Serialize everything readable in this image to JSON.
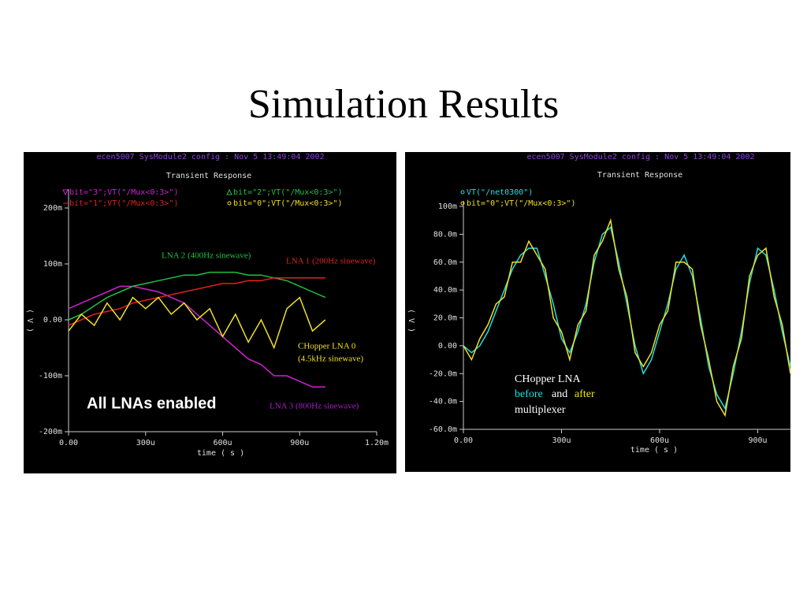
{
  "title": "Simulation Results",
  "chart_data": [
    {
      "type": "line",
      "header": "ecen5007 SysModule2 config : Nov  5 13:49:04 2002",
      "title": "Transient Response",
      "xlabel": "time ( s )",
      "ylabel": "( V )",
      "xlim": [
        0,
        0.0012
      ],
      "ylim": [
        -0.2,
        0.2
      ],
      "xticks": [
        {
          "value": 0,
          "label": "0.00"
        },
        {
          "value": 0.0003,
          "label": "300u"
        },
        {
          "value": 0.0006,
          "label": "600u"
        },
        {
          "value": 0.0009,
          "label": "900u"
        },
        {
          "value": 0.0012,
          "label": "1.20m"
        }
      ],
      "yticks": [
        {
          "value": 0.2,
          "label": "200m"
        },
        {
          "value": 0.1,
          "label": "100m"
        },
        {
          "value": 0,
          "label": "0.00"
        },
        {
          "value": -0.1,
          "label": "-100m"
        },
        {
          "value": -0.2,
          "label": "-200m"
        }
      ],
      "x": [
        0,
        5e-05,
        0.0001,
        0.00015,
        0.0002,
        0.00025,
        0.0003,
        0.00035,
        0.0004,
        0.00045,
        0.0005,
        0.00055,
        0.0006,
        0.00065,
        0.0007,
        0.00075,
        0.0008,
        0.00085,
        0.0009,
        0.00095,
        0.001
      ],
      "series": [
        {
          "name": "bit=\"3\";VT(\"/Mux<0:3>\")",
          "color": "#d020d0",
          "values": [
            0.02,
            0.03,
            0.04,
            0.05,
            0.06,
            0.06,
            0.055,
            0.05,
            0.04,
            0.03,
            0.01,
            -0.01,
            -0.03,
            -0.05,
            -0.07,
            -0.08,
            -0.1,
            -0.1,
            -0.11,
            -0.12,
            -0.12
          ]
        },
        {
          "name": "bit=\"2\";VT(\"/Mux<0:3>\")",
          "color": "#20c040",
          "values": [
            0.0,
            0.01,
            0.025,
            0.04,
            0.05,
            0.06,
            0.065,
            0.07,
            0.075,
            0.08,
            0.08,
            0.085,
            0.085,
            0.085,
            0.08,
            0.08,
            0.075,
            0.07,
            0.06,
            0.05,
            0.04
          ]
        },
        {
          "name": "bit=\"1\";VT(\"/Mux<0:3>\")",
          "color": "#e02020",
          "values": [
            -0.01,
            0.0,
            0.01,
            0.015,
            0.02,
            0.03,
            0.035,
            0.04,
            0.045,
            0.05,
            0.055,
            0.06,
            0.065,
            0.065,
            0.07,
            0.07,
            0.075,
            0.075,
            0.075,
            0.075,
            0.075
          ]
        },
        {
          "name": "bit=\"0\";VT(\"/Mux<0:3>\")",
          "color": "#f0e020",
          "values": [
            -0.02,
            0.01,
            -0.01,
            0.03,
            0.0,
            0.04,
            0.02,
            0.04,
            0.01,
            0.03,
            0.0,
            0.02,
            -0.03,
            0.01,
            -0.04,
            0.0,
            -0.05,
            0.02,
            0.04,
            -0.02,
            0.0
          ]
        }
      ],
      "annotations": [
        {
          "text": "LNA 2  (400Hz sinewave)",
          "color": "#20c040"
        },
        {
          "text": "LNA 1  (200Hz sinewave)",
          "color": "#e02020"
        },
        {
          "text": "CHopper LNA 0",
          "color": "#f0e020"
        },
        {
          "text": "(4.5kHz sinewave)",
          "color": "#f0e020"
        },
        {
          "text": "LNA 3 (800Hz sinewave)",
          "color": "#a020c0"
        },
        {
          "text": "All LNAs enabled",
          "color": "#ffffff"
        }
      ]
    },
    {
      "type": "line",
      "header": "ecen5007 SysModule2 config : Nov  5 13:49:04 2002",
      "title": "Transient Response",
      "xlabel": "time ( s )",
      "ylabel": "( V )",
      "xlim": [
        0,
        0.001
      ],
      "ylim": [
        -0.06,
        0.1
      ],
      "xticks": [
        {
          "value": 0,
          "label": "0.00"
        },
        {
          "value": 0.0003,
          "label": "300u"
        },
        {
          "value": 0.0006,
          "label": "600u"
        },
        {
          "value": 0.0009,
          "label": "900u"
        }
      ],
      "yticks": [
        {
          "value": 0.1,
          "label": "100m"
        },
        {
          "value": 0.08,
          "label": "80.0m"
        },
        {
          "value": 0.06,
          "label": "60.0m"
        },
        {
          "value": 0.04,
          "label": "40.0m"
        },
        {
          "value": 0.02,
          "label": "20.0m"
        },
        {
          "value": 0,
          "label": "0.00"
        },
        {
          "value": -0.02,
          "label": "-20.0m"
        },
        {
          "value": -0.04,
          "label": "-40.0m"
        },
        {
          "value": -0.06,
          "label": "-60.0m"
        }
      ],
      "x": [
        0,
        2.5e-05,
        5e-05,
        7.5e-05,
        0.0001,
        0.000125,
        0.00015,
        0.000175,
        0.0002,
        0.000225,
        0.00025,
        0.000275,
        0.0003,
        0.000325,
        0.00035,
        0.000375,
        0.0004,
        0.000425,
        0.00045,
        0.000475,
        0.0005,
        0.000525,
        0.00055,
        0.000575,
        0.0006,
        0.000625,
        0.00065,
        0.000675,
        0.0007,
        0.000725,
        0.00075,
        0.000775,
        0.0008,
        0.000825,
        0.00085,
        0.000875,
        0.0009,
        0.000925,
        0.00095,
        0.000975,
        0.001
      ],
      "series": [
        {
          "name": "VT(\"/net0300\")",
          "color": "#20e0e0",
          "values": [
            0.0,
            -0.005,
            0.0,
            0.01,
            0.025,
            0.04,
            0.055,
            0.065,
            0.07,
            0.07,
            0.05,
            0.03,
            0.005,
            -0.005,
            0.01,
            0.03,
            0.06,
            0.08,
            0.085,
            0.06,
            0.03,
            0.0,
            -0.02,
            -0.01,
            0.01,
            0.03,
            0.055,
            0.065,
            0.05,
            0.02,
            -0.015,
            -0.035,
            -0.045,
            -0.02,
            0.01,
            0.045,
            0.07,
            0.065,
            0.04,
            0.01,
            -0.015
          ]
        },
        {
          "name": "bit=\"0\";VT(\"/Mux<0:3>\")",
          "color": "#f0e020",
          "values": [
            0.0,
            -0.01,
            0.005,
            0.015,
            0.03,
            0.035,
            0.06,
            0.06,
            0.075,
            0.065,
            0.055,
            0.02,
            0.01,
            -0.01,
            0.015,
            0.025,
            0.065,
            0.075,
            0.09,
            0.055,
            0.035,
            -0.005,
            -0.015,
            -0.005,
            0.015,
            0.025,
            0.06,
            0.06,
            0.055,
            0.015,
            -0.01,
            -0.04,
            -0.05,
            -0.015,
            0.005,
            0.05,
            0.065,
            0.07,
            0.035,
            0.015,
            -0.02
          ]
        }
      ],
      "annotations": [
        {
          "text": "CHopper LNA",
          "color": "#ffffff"
        },
        {
          "text": "before",
          "color": "#20e0e0"
        },
        {
          "text": "and",
          "color": "#ffffff"
        },
        {
          "text": "after",
          "color": "#f0e020"
        },
        {
          "text": "multiplexer",
          "color": "#ffffff"
        }
      ]
    }
  ]
}
